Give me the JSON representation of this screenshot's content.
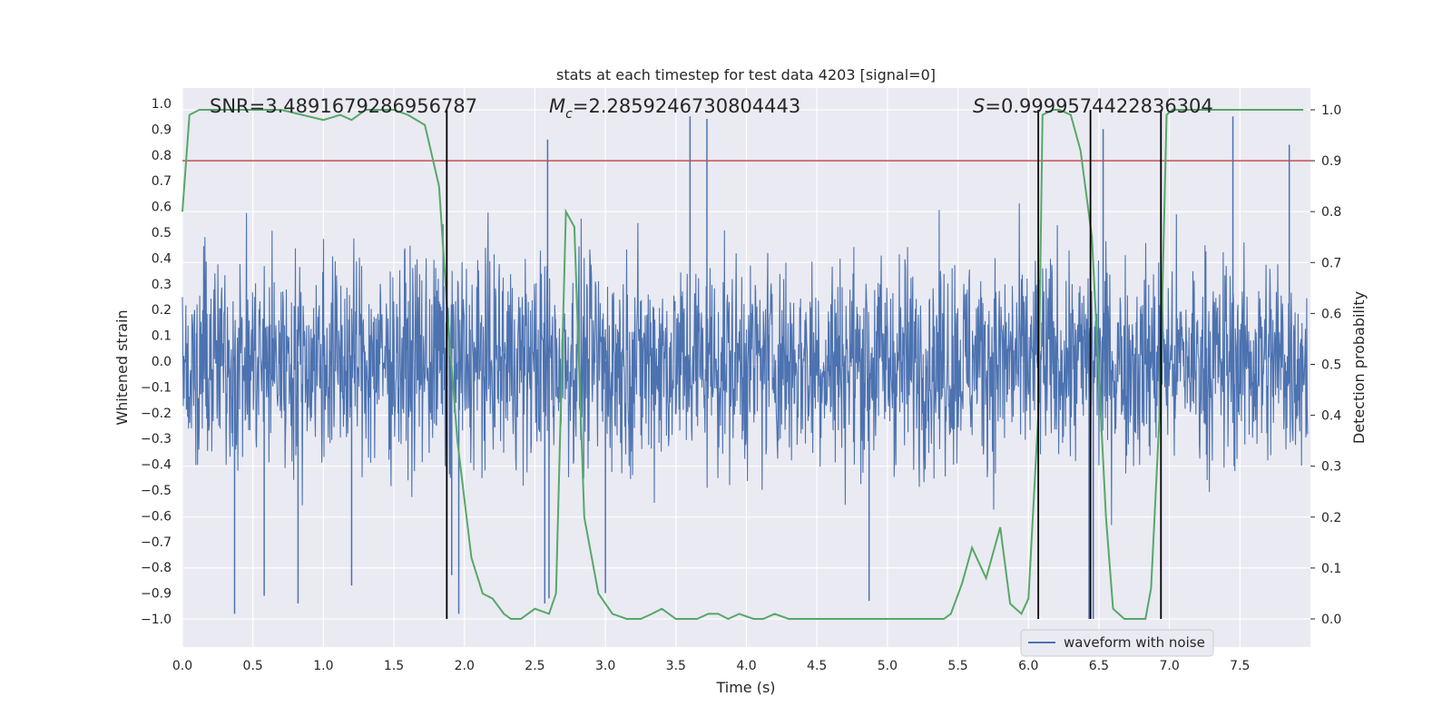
{
  "chart_data": {
    "type": "line",
    "title": "stats at each timestep for test data 4203 [signal=0]",
    "xlabel": "Time (s)",
    "ylabel_left": "Whitened strain",
    "ylabel_right": "Detection probability",
    "xlim": [
      0.0,
      8.0
    ],
    "ylim_left": [
      -1.1,
      1.05
    ],
    "ylim_right": [
      -0.05,
      1.05
    ],
    "x_ticks": [
      "0.0",
      "0.5",
      "1.0",
      "1.5",
      "2.0",
      "2.5",
      "3.0",
      "3.5",
      "4.0",
      "4.5",
      "5.0",
      "5.5",
      "6.0",
      "6.5",
      "7.0",
      "7.5"
    ],
    "y_ticks_left": [
      "1.0",
      "0.9",
      "0.8",
      "0.7",
      "0.6",
      "0.5",
      "0.4",
      "0.3",
      "0.2",
      "0.1",
      "0.0",
      "−0.1",
      "−0.2",
      "−0.3",
      "−0.4",
      "−0.5",
      "−0.6",
      "−0.7",
      "−0.8",
      "−0.9",
      "−1.0"
    ],
    "y_ticks_right": [
      "1.0",
      "0.9",
      "0.8",
      "0.7",
      "0.6",
      "0.5",
      "0.4",
      "0.3",
      "0.2",
      "0.1",
      "0.0"
    ],
    "annotations": {
      "snr": {
        "label": "SNR",
        "value": "3.4891679286956787"
      },
      "mc": {
        "label_base": "M",
        "label_sub": "c",
        "value": "2.2859246730804443"
      },
      "s": {
        "label": "S",
        "value": "0.9999574422836304"
      }
    },
    "threshold": {
      "value": 0.9,
      "axis": "right",
      "color": "#c44e52"
    },
    "vertical_lines_x": [
      1.875,
      6.07,
      6.44,
      6.94
    ],
    "colors": {
      "waveform": "#4c72b0",
      "probability": "#55a868",
      "vline": "#000000",
      "bg": "#eaeaf2",
      "grid": "#ffffff"
    },
    "series": [
      {
        "name": "waveform with noise",
        "axis": "left",
        "description_values": "dense noise, mostly within -0.6..0.6 with spikes to about +/-1.0",
        "noise_amplitude": 0.6,
        "spikes": [
          {
            "x": 0.37,
            "y": -0.98
          },
          {
            "x": 0.58,
            "y": -0.91
          },
          {
            "x": 0.82,
            "y": -0.94
          },
          {
            "x": 1.2,
            "y": -0.87
          },
          {
            "x": 1.96,
            "y": -0.98
          },
          {
            "x": 1.91,
            "y": -0.83
          },
          {
            "x": 2.59,
            "y": 0.86
          },
          {
            "x": 2.57,
            "y": -0.94
          },
          {
            "x": 3.0,
            "y": -0.9
          },
          {
            "x": 3.6,
            "y": 0.95
          },
          {
            "x": 3.72,
            "y": 0.94
          },
          {
            "x": 4.87,
            "y": -0.93
          },
          {
            "x": 6.43,
            "y": -1.0
          },
          {
            "x": 6.46,
            "y": -1.0
          },
          {
            "x": 7.45,
            "y": 0.95
          },
          {
            "x": 7.85,
            "y": 0.84
          },
          {
            "x": 2.6,
            "y": -0.92
          },
          {
            "x": 6.53,
            "y": 0.9
          }
        ]
      },
      {
        "name": "detection probability",
        "axis": "right",
        "x": [
          0.0,
          0.05,
          0.12,
          0.2,
          0.3,
          0.5,
          0.7,
          0.85,
          1.0,
          1.12,
          1.2,
          1.3,
          1.5,
          1.6,
          1.72,
          1.82,
          1.88,
          1.95,
          2.05,
          2.13,
          2.2,
          2.28,
          2.33,
          2.4,
          2.5,
          2.6,
          2.65,
          2.72,
          2.78,
          2.85,
          2.95,
          3.05,
          3.15,
          3.25,
          3.33,
          3.4,
          3.5,
          3.57,
          3.65,
          3.73,
          3.8,
          3.87,
          3.95,
          4.05,
          4.12,
          4.2,
          4.3,
          4.5,
          4.8,
          5.0,
          5.2,
          5.4,
          5.45,
          5.53,
          5.6,
          5.7,
          5.8,
          5.87,
          5.95,
          6.0,
          6.07,
          6.1,
          6.17,
          6.22,
          6.3,
          6.37,
          6.45,
          6.55,
          6.6,
          6.68,
          6.75,
          6.83,
          6.87,
          6.93,
          6.98,
          7.02,
          7.1,
          7.3,
          7.5,
          7.7,
          7.95
        ],
        "y": [
          0.8,
          0.99,
          1.0,
          1.0,
          1.0,
          1.0,
          1.0,
          0.99,
          0.98,
          0.99,
          0.98,
          1.0,
          1.0,
          0.99,
          0.97,
          0.85,
          0.6,
          0.35,
          0.12,
          0.05,
          0.04,
          0.01,
          0.0,
          0.0,
          0.02,
          0.01,
          0.05,
          0.8,
          0.77,
          0.2,
          0.05,
          0.01,
          0.0,
          0.0,
          0.01,
          0.02,
          0.0,
          0.0,
          0.0,
          0.01,
          0.01,
          0.0,
          0.01,
          0.0,
          0.0,
          0.01,
          0.0,
          0.0,
          0.0,
          0.0,
          0.0,
          0.0,
          0.01,
          0.07,
          0.14,
          0.08,
          0.18,
          0.03,
          0.01,
          0.04,
          0.4,
          0.99,
          1.0,
          1.0,
          0.99,
          0.92,
          0.75,
          0.2,
          0.02,
          0.0,
          0.0,
          0.0,
          0.06,
          0.4,
          0.99,
          1.0,
          1.0,
          1.0,
          1.0,
          1.0,
          1.0
        ]
      }
    ],
    "legend": {
      "position": "bottom-right",
      "entries": [
        "waveform with noise"
      ]
    }
  }
}
